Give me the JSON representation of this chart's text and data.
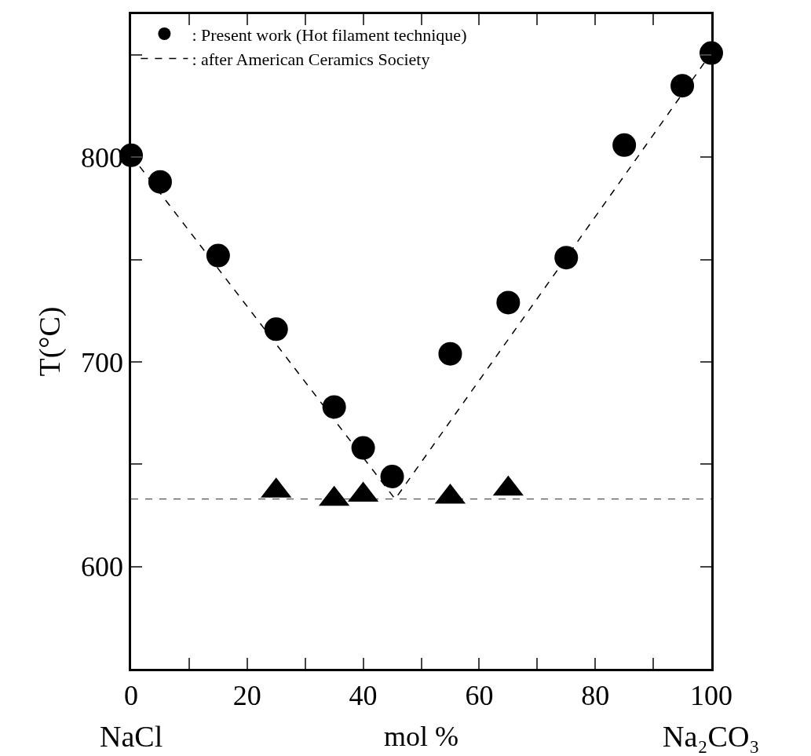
{
  "chart_data": {
    "type": "scatter",
    "xlabel": "mol %",
    "ylabel": "T(°C)",
    "annotations": [
      "NaCl",
      "Na₂CO₃"
    ],
    "series": [
      {
        "name": ": Present work (Hot filament technique)",
        "color": "#000000",
        "marker": "circle",
        "x": [
          0,
          5,
          15,
          25,
          35,
          40,
          45,
          55,
          65,
          75,
          85,
          95,
          100
        ],
        "values": [
          801,
          788,
          752,
          716,
          678,
          658,
          644,
          704,
          729,
          751,
          806,
          835,
          851
        ]
      },
      {
        "color": "#000000",
        "marker": "triangle",
        "x": [
          25,
          35,
          40,
          55,
          65
        ],
        "values": [
          637,
          633,
          635,
          634,
          638
        ]
      },
      {
        "name": ": after American Ceramics Society",
        "type": "line",
        "color": "#000000",
        "marker": "none",
        "line_style": "dashed",
        "x": [
          0,
          45.5,
          100
        ],
        "values": [
          801,
          633,
          851
        ]
      }
    ],
    "ref_lines": [
      {
        "axis": "y",
        "value": 633,
        "color": "#555555",
        "line_style": "dashed"
      }
    ],
    "xlim": [
      0,
      100
    ],
    "ylim": [
      550,
      870
    ],
    "xticks": [
      0,
      {
        "value": 10,
        "label": null
      },
      20,
      {
        "value": 30,
        "label": null
      },
      40,
      {
        "value": 50,
        "label": null
      },
      60,
      {
        "value": 70,
        "label": null
      },
      80,
      {
        "value": 90,
        "label": null
      },
      100
    ],
    "yticks": [
      600,
      {
        "value": 650,
        "label": null
      },
      700,
      {
        "value": 750,
        "label": null
      },
      800,
      {
        "value": 850,
        "label": null
      }
    ],
    "grid": false,
    "legend": "top left"
  }
}
